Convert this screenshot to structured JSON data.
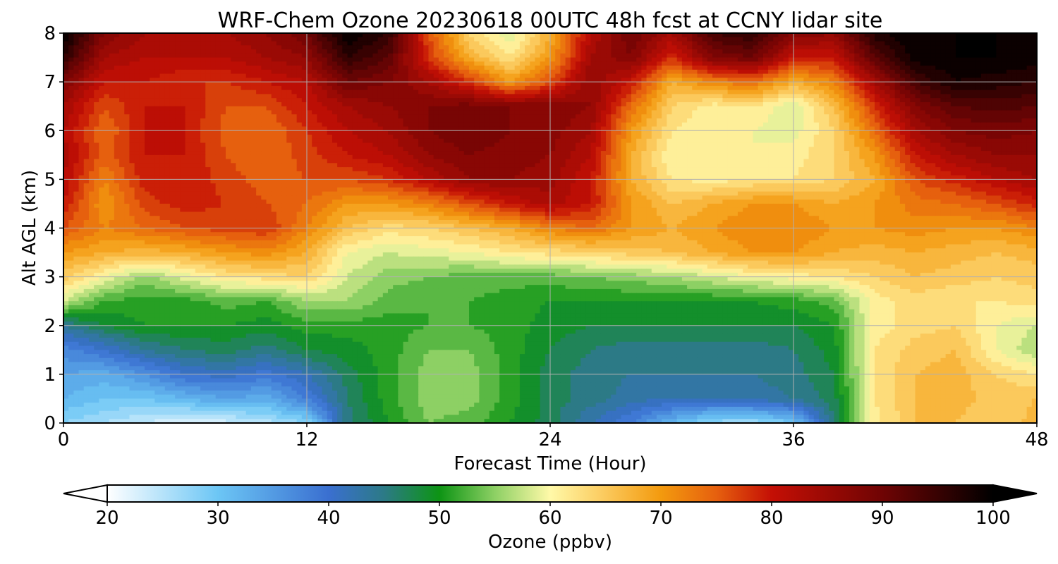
{
  "chart_data": {
    "type": "heatmap",
    "title": "WRF-Chem Ozone  20230618 00UTC 48h fcst at CCNY lidar site",
    "xlabel": "Forecast Time (Hour)",
    "ylabel": "Alt AGL (km)",
    "xlim": [
      0,
      48
    ],
    "ylim": [
      0,
      8
    ],
    "x_ticks": [
      0,
      12,
      24,
      36,
      48
    ],
    "y_ticks": [
      0,
      1,
      2,
      3,
      4,
      5,
      6,
      7,
      8
    ],
    "grid": true,
    "colorbar": {
      "label": "Ozone  (ppbv)",
      "range": [
        20,
        100
      ],
      "ticks": [
        20,
        30,
        40,
        50,
        60,
        70,
        80,
        90,
        100
      ],
      "extend": "both",
      "stops": [
        {
          "value": 20,
          "color": "#ffffff"
        },
        {
          "value": 30,
          "color": "#6cc6f5"
        },
        {
          "value": 40,
          "color": "#3a6fd0"
        },
        {
          "value": 45,
          "color": "#2c7a86"
        },
        {
          "value": 50,
          "color": "#0d9414"
        },
        {
          "value": 55,
          "color": "#8dd064"
        },
        {
          "value": 60,
          "color": "#fff9a8"
        },
        {
          "value": 65,
          "color": "#fbc95c"
        },
        {
          "value": 70,
          "color": "#f39a0e"
        },
        {
          "value": 75,
          "color": "#e6600e"
        },
        {
          "value": 80,
          "color": "#c40f05"
        },
        {
          "value": 90,
          "color": "#6f0404"
        },
        {
          "value": 100,
          "color": "#000000"
        }
      ]
    },
    "x_hours": [
      0,
      2,
      4,
      6,
      8,
      10,
      12,
      14,
      16,
      18,
      20,
      22,
      24,
      26,
      28,
      30,
      32,
      34,
      36,
      38,
      40,
      42,
      44,
      46,
      48
    ],
    "z_altitudes_km": [
      0,
      0.5,
      1,
      1.5,
      2,
      2.5,
      3,
      3.5,
      4,
      4.5,
      5,
      5.5,
      6,
      6.5,
      7,
      7.5,
      8
    ],
    "ozone_ppbv": [
      [
        28,
        26,
        24,
        22,
        23,
        25,
        28,
        45,
        50,
        54,
        53,
        50,
        47,
        42,
        38,
        32,
        27,
        26,
        30,
        46,
        61,
        66,
        66,
        64,
        67
      ],
      [
        32,
        30,
        30,
        32,
        34,
        33,
        38,
        46,
        51,
        55,
        55,
        51,
        47,
        45,
        43,
        42,
        42,
        43,
        44,
        47,
        62,
        66,
        67,
        65,
        66
      ],
      [
        34,
        33,
        36,
        40,
        41,
        39,
        42,
        47,
        51,
        55,
        55,
        51,
        47,
        45,
        44,
        44,
        44,
        44,
        45,
        48,
        62,
        66,
        67,
        64,
        62
      ],
      [
        37,
        40,
        44,
        46,
        47,
        45,
        48,
        49,
        51,
        54,
        54,
        51,
        48,
        46,
        45,
        45,
        45,
        45,
        46,
        49,
        62,
        65,
        66,
        60,
        56
      ],
      [
        44,
        48,
        50,
        50,
        50,
        49,
        51,
        51,
        51,
        52,
        52,
        51,
        49,
        48,
        48,
        48,
        48,
        48,
        48,
        50,
        61,
        63,
        64,
        60,
        58
      ],
      [
        58,
        52,
        51,
        51,
        53,
        52,
        56,
        56,
        53,
        52,
        52,
        51,
        50,
        50,
        50,
        50,
        50,
        50,
        51,
        53,
        61,
        63,
        62,
        62,
        63
      ],
      [
        65,
        60,
        55,
        59,
        62,
        63,
        64,
        58,
        55,
        54,
        53,
        53,
        53,
        54,
        55,
        56,
        58,
        60,
        61,
        62,
        64,
        66,
        65,
        64,
        65
      ],
      [
        70,
        68,
        67,
        68,
        70,
        71,
        68,
        60,
        58,
        59,
        60,
        62,
        63,
        64,
        65,
        66,
        68,
        70,
        70,
        68,
        67,
        68,
        67,
        66,
        67
      ],
      [
        76,
        72,
        74,
        76,
        77,
        78,
        72,
        66,
        63,
        64,
        66,
        68,
        72,
        74,
        70,
        68,
        70,
        72,
        72,
        70,
        70,
        71,
        70,
        70,
        72
      ],
      [
        80,
        70,
        77,
        79,
        78,
        76,
        74,
        70,
        70,
        72,
        76,
        80,
        83,
        80,
        70,
        66,
        68,
        70,
        70,
        68,
        70,
        73,
        74,
        76,
        79
      ],
      [
        82,
        72,
        79,
        80,
        77,
        75,
        76,
        76,
        78,
        82,
        86,
        86,
        85,
        80,
        68,
        62,
        61,
        62,
        62,
        64,
        68,
        76,
        79,
        82,
        84
      ],
      [
        83,
        75,
        80,
        80,
        76,
        74,
        77,
        80,
        82,
        86,
        88,
        87,
        86,
        82,
        68,
        60,
        60,
        60,
        61,
        64,
        70,
        80,
        84,
        86,
        86
      ],
      [
        82,
        74,
        80,
        80,
        75,
        74,
        78,
        82,
        84,
        88,
        90,
        88,
        87,
        84,
        70,
        62,
        60,
        60,
        59,
        64,
        74,
        84,
        88,
        89,
        88
      ],
      [
        84,
        76,
        80,
        80,
        76,
        76,
        80,
        84,
        86,
        88,
        89,
        88,
        88,
        86,
        74,
        64,
        61,
        62,
        58,
        66,
        78,
        88,
        92,
        93,
        92
      ],
      [
        88,
        80,
        80,
        78,
        78,
        80,
        82,
        90,
        88,
        84,
        78,
        70,
        76,
        86,
        80,
        68,
        72,
        74,
        68,
        72,
        84,
        94,
        98,
        97,
        96
      ],
      [
        96,
        84,
        82,
        82,
        82,
        84,
        86,
        96,
        92,
        78,
        68,
        62,
        70,
        84,
        88,
        78,
        88,
        90,
        80,
        80,
        92,
        99,
        100,
        100,
        99
      ],
      [
        100,
        88,
        84,
        84,
        84,
        86,
        90,
        100,
        96,
        76,
        64,
        58,
        68,
        82,
        90,
        84,
        94,
        96,
        88,
        86,
        97,
        100,
        100,
        100,
        100
      ]
    ]
  }
}
